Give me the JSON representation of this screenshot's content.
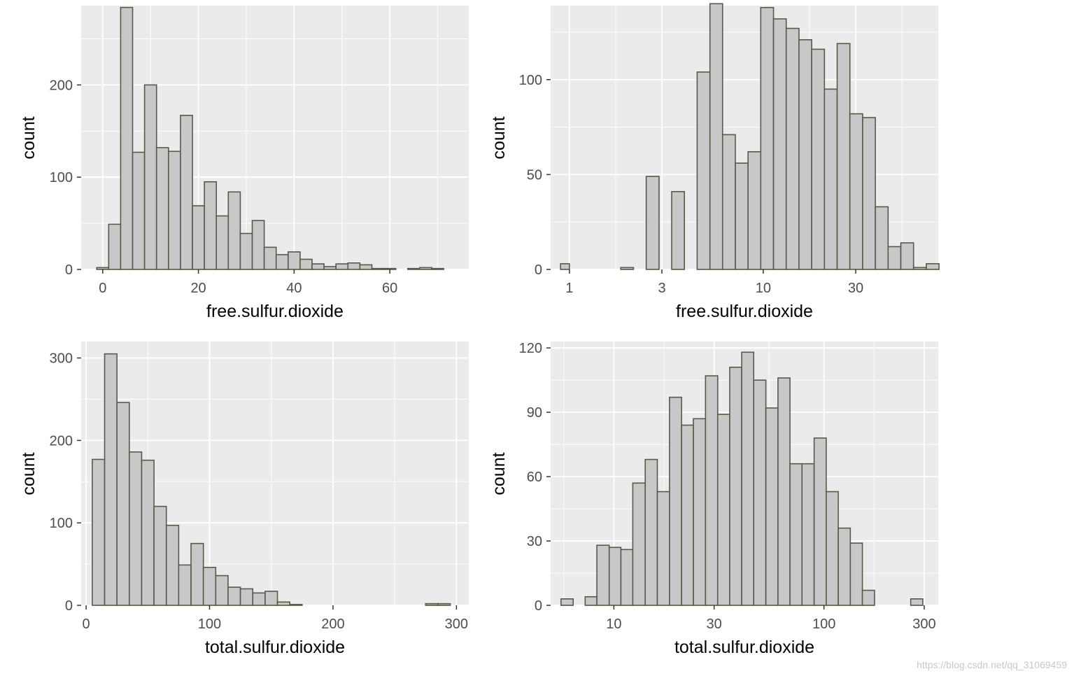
{
  "style": {
    "panel_bg": "#ebebeb",
    "grid_major": "#ffffff",
    "bar_fill": "#c8c8c8",
    "bar_stroke": "#595944",
    "tick_color": "#333333"
  },
  "chart_data": [
    {
      "type": "bar",
      "xlabel": "free.sulfur.dioxide",
      "ylabel": "count",
      "xscale": "linear",
      "xlim": [
        -4.5,
        76.5
      ],
      "ylim": [
        0,
        286
      ],
      "xticks": [
        0,
        20,
        40,
        60
      ],
      "xtick_labels": [
        "0",
        "20",
        "40",
        "60"
      ],
      "yticks": [
        0,
        100,
        200
      ],
      "ytick_labels": [
        "0",
        "100",
        "200"
      ],
      "bins": [
        [
          -1.25,
          1.25
        ],
        [
          1.25,
          3.75
        ],
        [
          3.75,
          6.25
        ],
        [
          6.25,
          8.75
        ],
        [
          8.75,
          11.25
        ],
        [
          11.25,
          13.75
        ],
        [
          13.75,
          16.25
        ],
        [
          16.25,
          18.75
        ],
        [
          18.75,
          21.25
        ],
        [
          21.25,
          23.75
        ],
        [
          23.75,
          26.25
        ],
        [
          26.25,
          28.75
        ],
        [
          28.75,
          31.25
        ],
        [
          31.25,
          33.75
        ],
        [
          33.75,
          36.25
        ],
        [
          36.25,
          38.75
        ],
        [
          38.75,
          41.25
        ],
        [
          41.25,
          43.75
        ],
        [
          43.75,
          46.25
        ],
        [
          46.25,
          48.75
        ],
        [
          48.75,
          51.25
        ],
        [
          51.25,
          53.75
        ],
        [
          53.75,
          56.25
        ],
        [
          56.25,
          58.75
        ],
        [
          58.75,
          61.25
        ],
        [
          61.25,
          63.75
        ],
        [
          63.75,
          66.25
        ],
        [
          66.25,
          68.75
        ],
        [
          68.75,
          71.25
        ]
      ],
      "values": [
        2,
        49,
        284,
        127,
        200,
        132,
        128,
        167,
        69,
        95,
        58,
        84,
        39,
        53,
        24,
        16,
        19,
        11,
        6,
        3,
        6,
        7,
        5,
        1,
        1,
        0,
        1,
        2,
        1
      ]
    },
    {
      "type": "bar",
      "xlabel": "free.sulfur.dioxide",
      "ylabel": "count",
      "xscale": "log10",
      "xlim": [
        0.8,
        80
      ],
      "ylim": [
        0,
        139
      ],
      "xticks": [
        1,
        3,
        10,
        30
      ],
      "xtick_labels": [
        "1",
        "3",
        "10",
        "30"
      ],
      "yticks": [
        0,
        50,
        100
      ],
      "ytick_labels": [
        "0",
        "50",
        "100"
      ],
      "bins": [
        [
          0.9,
          1.0
        ],
        [
          1.0,
          1.17
        ],
        [
          1.17,
          1.36
        ],
        [
          1.36,
          1.58
        ],
        [
          1.58,
          1.84
        ],
        [
          1.84,
          2.14
        ],
        [
          2.14,
          2.49
        ],
        [
          2.49,
          2.9
        ],
        [
          2.9,
          3.37
        ],
        [
          3.37,
          3.92
        ],
        [
          3.92,
          4.56
        ],
        [
          4.56,
          5.31
        ],
        [
          5.31,
          6.17
        ],
        [
          6.17,
          7.18
        ],
        [
          7.18,
          8.35
        ],
        [
          8.35,
          9.71
        ],
        [
          9.71,
          11.3
        ],
        [
          11.3,
          13.14
        ],
        [
          13.14,
          15.29
        ],
        [
          15.29,
          17.78
        ],
        [
          17.78,
          20.69
        ],
        [
          20.69,
          24.07
        ],
        [
          24.07,
          28.0
        ],
        [
          28.0,
          32.57
        ],
        [
          32.57,
          37.89
        ],
        [
          37.89,
          44.08
        ],
        [
          44.08,
          51.28
        ],
        [
          51.28,
          59.66
        ],
        [
          59.66,
          69.4
        ],
        [
          69.4,
          80.7
        ]
      ],
      "values": [
        3,
        0,
        0,
        0,
        0,
        1,
        0,
        49,
        0,
        41,
        0,
        104,
        140,
        71,
        56,
        62,
        138,
        132,
        127,
        121,
        116,
        95,
        119,
        82,
        80,
        33,
        12,
        14,
        1,
        3
      ]
    },
    {
      "type": "bar",
      "xlabel": "total.sulfur.dioxide",
      "ylabel": "count",
      "xscale": "linear",
      "xlim": [
        -4,
        310
      ],
      "ylim": [
        0,
        320
      ],
      "xticks": [
        0,
        100,
        200,
        300
      ],
      "xtick_labels": [
        "0",
        "100",
        "200",
        "300"
      ],
      "yticks": [
        0,
        100,
        200,
        300
      ],
      "ytick_labels": [
        "0",
        "100",
        "200",
        "300"
      ],
      "bins": [
        [
          5,
          15
        ],
        [
          15,
          25
        ],
        [
          25,
          35
        ],
        [
          35,
          45
        ],
        [
          45,
          55
        ],
        [
          55,
          65
        ],
        [
          65,
          75
        ],
        [
          75,
          85
        ],
        [
          85,
          95
        ],
        [
          95,
          105
        ],
        [
          105,
          115
        ],
        [
          115,
          125
        ],
        [
          125,
          135
        ],
        [
          135,
          145
        ],
        [
          145,
          155
        ],
        [
          155,
          165
        ],
        [
          165,
          175
        ],
        [
          175,
          185
        ],
        [
          185,
          195
        ],
        [
          195,
          205
        ],
        [
          205,
          215
        ],
        [
          215,
          225
        ],
        [
          225,
          235
        ],
        [
          235,
          245
        ],
        [
          245,
          255
        ],
        [
          255,
          265
        ],
        [
          265,
          275
        ],
        [
          275,
          285
        ],
        [
          285,
          295
        ]
      ],
      "values": [
        177,
        305,
        246,
        186,
        176,
        120,
        97,
        49,
        75,
        46,
        36,
        22,
        20,
        15,
        17,
        4,
        1,
        0,
        0,
        0,
        0,
        0,
        0,
        0,
        0,
        0,
        0,
        2,
        2
      ]
    },
    {
      "type": "bar",
      "xlabel": "total.sulfur.dioxide",
      "ylabel": "count",
      "xscale": "log10",
      "xlim": [
        5,
        350
      ],
      "ylim": [
        0,
        123
      ],
      "xticks": [
        10,
        30,
        100,
        300
      ],
      "xtick_labels": [
        "10",
        "30",
        "100",
        "300"
      ],
      "yticks": [
        0,
        30,
        60,
        90,
        120
      ],
      "ytick_labels": [
        "0",
        "30",
        "60",
        "90",
        "120"
      ],
      "bins": [
        [
          5.6,
          6.4
        ],
        [
          6.4,
          7.3
        ],
        [
          7.3,
          8.3
        ],
        [
          8.3,
          9.5
        ],
        [
          9.5,
          10.8
        ],
        [
          10.8,
          12.3
        ],
        [
          12.3,
          14.1
        ],
        [
          14.1,
          16.1
        ],
        [
          16.1,
          18.4
        ],
        [
          18.4,
          21.0
        ],
        [
          21.0,
          23.9
        ],
        [
          23.9,
          27.3
        ],
        [
          27.3,
          31.2
        ],
        [
          31.2,
          35.6
        ],
        [
          35.6,
          40.6
        ],
        [
          40.6,
          46.3
        ],
        [
          46.3,
          52.9
        ],
        [
          52.9,
          60.4
        ],
        [
          60.4,
          68.9
        ],
        [
          68.9,
          78.6
        ],
        [
          78.6,
          89.8
        ],
        [
          89.8,
          102.5
        ],
        [
          102.5,
          117.0
        ],
        [
          117.0,
          133.5
        ],
        [
          133.5,
          152.4
        ],
        [
          152.4,
          174.0
        ],
        [
          174.0,
          198.6
        ],
        [
          198.6,
          226.7
        ],
        [
          226.7,
          258.8
        ],
        [
          258.8,
          295.4
        ]
      ],
      "values": [
        3,
        0,
        4,
        28,
        27,
        26,
        57,
        68,
        53,
        97,
        84,
        87,
        107,
        89,
        111,
        118,
        105,
        92,
        106,
        66,
        66,
        78,
        53,
        36,
        29,
        7,
        0,
        0,
        0,
        3
      ]
    }
  ],
  "watermark": "https://blog.csdn.net/qq_31069459"
}
